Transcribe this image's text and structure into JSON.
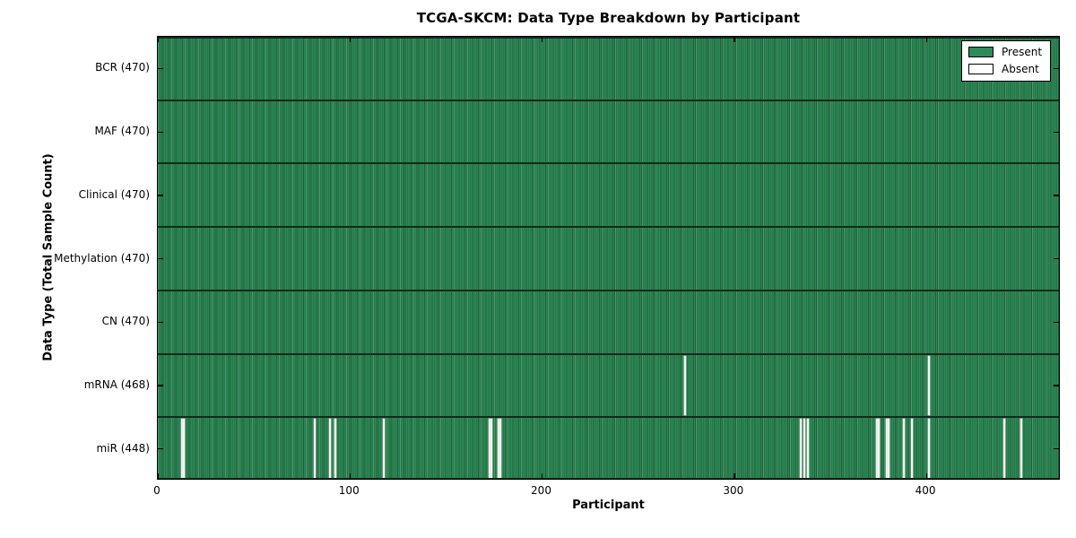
{
  "chart_data": {
    "type": "heatmap",
    "title": "TCGA-SKCM: Data Type Breakdown by Participant",
    "xlabel": "Participant",
    "ylabel": "Data Type (Total Sample Count)",
    "xlim": [
      0,
      470
    ],
    "x_ticks": [
      0,
      100,
      200,
      300,
      400
    ],
    "n_participants": 470,
    "grid": false,
    "legend": {
      "position": "upper right",
      "entries": [
        {
          "name": "present",
          "label": "Present",
          "color": "#2e8b57"
        },
        {
          "name": "absent",
          "label": "Absent",
          "color": "#ffffff"
        }
      ]
    },
    "rows": [
      {
        "data_type": "BCR",
        "label": "BCR (470)",
        "present_count": 470,
        "absent_participants": []
      },
      {
        "data_type": "MAF",
        "label": "MAF (470)",
        "present_count": 470,
        "absent_participants": []
      },
      {
        "data_type": "Clinical",
        "label": "Clinical (470)",
        "present_count": 470,
        "absent_participants": []
      },
      {
        "data_type": "Methylation",
        "label": "Methylation (470)",
        "present_count": 470,
        "absent_participants": []
      },
      {
        "data_type": "CN",
        "label": "CN (470)",
        "present_count": 470,
        "absent_participants": []
      },
      {
        "data_type": "mRNA",
        "label": "mRNA (468)",
        "present_count": 468,
        "absent_participants": [
          274,
          401
        ]
      },
      {
        "data_type": "miR",
        "label": "miR (448)",
        "present_count": 448,
        "absent_participants": [
          12,
          13,
          81,
          89,
          92,
          117,
          172,
          173,
          177,
          178,
          334,
          336,
          338,
          374,
          375,
          379,
          380,
          388,
          392,
          401,
          440,
          449
        ]
      }
    ],
    "colors": {
      "present_fill": "#2e8b57",
      "present_edge": "#1e5e3b",
      "absent_fill": "#f5f5f1",
      "row_divider": "#122a1b",
      "axis_spine": "#000000",
      "background": "#ffffff"
    }
  }
}
